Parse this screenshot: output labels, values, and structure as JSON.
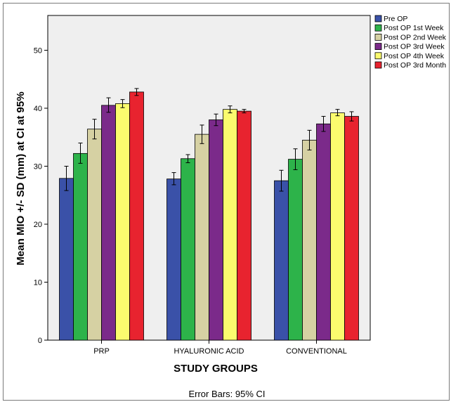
{
  "chart_data": {
    "type": "bar",
    "xlabel": "STUDY GROUPS",
    "ylabel": "Mean MIO +/- SD (mm) at CI at 95%",
    "footnote": "Error Bars: 95% CI",
    "ylim": [
      0,
      56
    ],
    "yticks": [
      "0",
      "10",
      "20",
      "30",
      "40",
      "50"
    ],
    "categories": [
      "PRP",
      "HYALURONIC ACID",
      "CONVENTIONAL"
    ],
    "legend_position": "top-right",
    "grid": false,
    "series": [
      {
        "name": "Pre OP",
        "color": "#3a51a8",
        "values": [
          27.9,
          27.8,
          27.5
        ],
        "ci_low": [
          25.8,
          26.8,
          25.7
        ],
        "ci_high": [
          30.0,
          28.9,
          29.3
        ]
      },
      {
        "name": "Post OP 1st Week",
        "color": "#2db34a",
        "values": [
          32.2,
          31.3,
          31.2
        ],
        "ci_low": [
          30.5,
          30.6,
          29.4
        ],
        "ci_high": [
          34.0,
          32.0,
          33.0
        ]
      },
      {
        "name": "Post OP 2nd Week",
        "color": "#d6d1a3",
        "values": [
          36.4,
          35.5,
          34.5
        ],
        "ci_low": [
          34.7,
          33.9,
          32.8
        ],
        "ci_high": [
          38.1,
          37.1,
          36.2
        ]
      },
      {
        "name": "Post OP 3rd Week",
        "color": "#7b2a8a",
        "values": [
          40.5,
          38.0,
          37.3
        ],
        "ci_low": [
          39.3,
          37.0,
          36.0
        ],
        "ci_high": [
          41.8,
          39.0,
          38.6
        ]
      },
      {
        "name": "Post OP 4th Week",
        "color": "#fbfb6e",
        "values": [
          40.8,
          39.8,
          39.2
        ],
        "ci_low": [
          40.1,
          39.2,
          38.7
        ],
        "ci_high": [
          41.5,
          40.4,
          39.8
        ]
      },
      {
        "name": "Post OP 3rd Month",
        "color": "#e8232f",
        "values": [
          42.8,
          39.5,
          38.6
        ],
        "ci_low": [
          42.2,
          39.2,
          37.8
        ],
        "ci_high": [
          43.4,
          39.8,
          39.4
        ]
      }
    ]
  }
}
